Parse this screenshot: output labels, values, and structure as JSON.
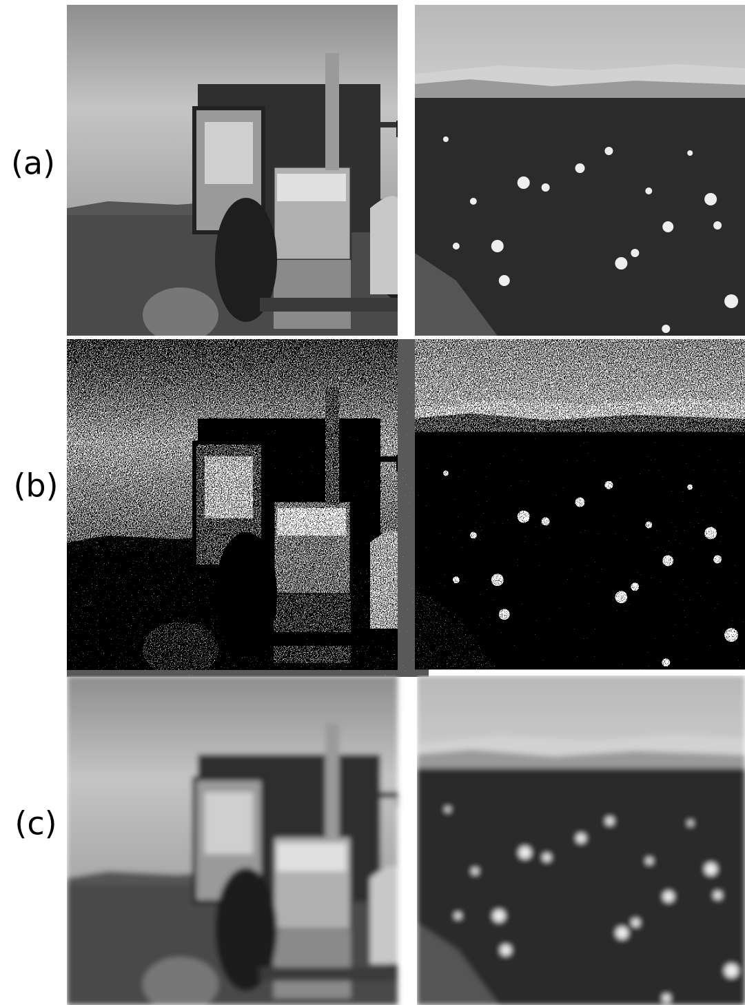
{
  "rows": [
    {
      "label": "(a)"
    },
    {
      "label": "(b)"
    },
    {
      "label": "(c)"
    }
  ]
}
